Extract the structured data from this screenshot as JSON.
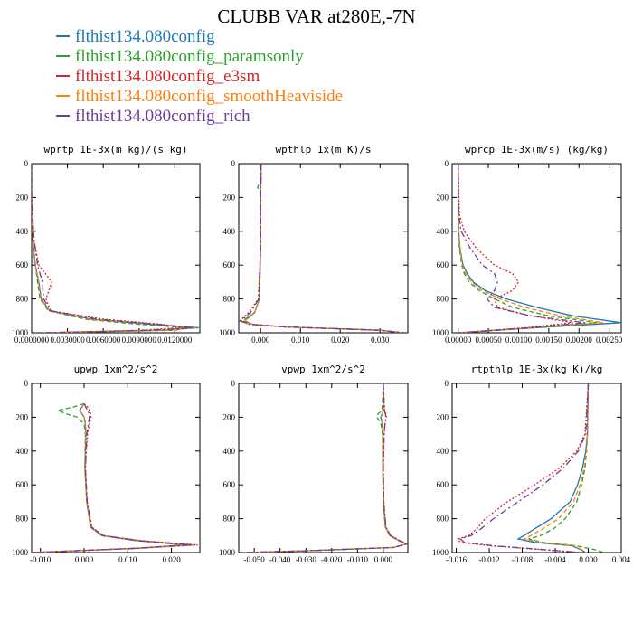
{
  "figure": {
    "title": "CLUBB VAR at280E,-7N"
  },
  "legend": [
    {
      "label": "flthist134.080config",
      "color": "#1f77b4",
      "dash": "solid"
    },
    {
      "label": "flthist134.080config_paramsonly",
      "color": "#2ca02c",
      "dash": "dashed"
    },
    {
      "label": "flthist134.080config_e3sm",
      "color": "#d62728",
      "dash": "dotted"
    },
    {
      "label": "flthist134.080config_smoothHeaviside",
      "color": "#ff7f0e",
      "dash": "dashed"
    },
    {
      "label": "flthist134.080config_rich",
      "color": "#6a3d9a",
      "dash": "dashdot"
    }
  ],
  "chart_data": [
    {
      "type": "line",
      "title": "wprtp  1E-3x(m kg)/(s kg)",
      "xlim": [
        0.0,
        0.0141
      ],
      "ylim": [
        1000,
        0
      ],
      "xticks": [
        0.0,
        0.003,
        0.006,
        0.009,
        0.012
      ],
      "xtick_labels": [
        "0.0000000",
        "0.0030000",
        "0.0060000",
        "0.0090000",
        "0.0120000"
      ],
      "yticks": [
        0,
        200,
        400,
        600,
        800,
        1000
      ],
      "y": [
        0,
        200,
        450,
        600,
        700,
        800,
        870,
        920,
        950,
        970,
        985,
        1000
      ],
      "series": [
        {
          "name": "flthist134.080config",
          "values": [
            0,
            0,
            0.0001,
            0.0003,
            0.0006,
            0.0008,
            0.0015,
            0.005,
            0.01,
            0.014,
            0.011,
            0.001
          ]
        },
        {
          "name": "flthist134.080config_paramsonly",
          "values": [
            0,
            0,
            0.0001,
            0.0003,
            0.0005,
            0.0007,
            0.0014,
            0.0045,
            0.009,
            0.013,
            0.012,
            0.001
          ]
        },
        {
          "name": "flthist134.080config_e3sm",
          "values": [
            0,
            0,
            0.0002,
            0.0006,
            0.0017,
            0.0012,
            0.0016,
            0.006,
            0.011,
            0.0125,
            0.009,
            0.001
          ]
        },
        {
          "name": "flthist134.080config_smoothHeaviside",
          "values": [
            0,
            0,
            0.0001,
            0.0003,
            0.0006,
            0.0008,
            0.0015,
            0.005,
            0.0105,
            0.0138,
            0.0115,
            0.001
          ]
        },
        {
          "name": "flthist134.080config_rich",
          "values": [
            0,
            0,
            0.0002,
            0.0005,
            0.0009,
            0.001,
            0.0016,
            0.0055,
            0.0105,
            0.0135,
            0.01,
            0.001
          ]
        }
      ]
    },
    {
      "type": "line",
      "title": "wpthlp  1x(m K)/s",
      "xlim": [
        -0.0055,
        0.037
      ],
      "ylim": [
        1000,
        0
      ],
      "xticks": [
        0.0,
        0.01,
        0.02,
        0.03
      ],
      "xtick_labels": [
        "0.000",
        "0.010",
        "0.020",
        "0.030"
      ],
      "yticks": [
        0,
        200,
        400,
        600,
        800,
        1000
      ],
      "y": [
        0,
        100,
        140,
        160,
        200,
        500,
        800,
        880,
        930,
        950,
        965,
        985,
        1000
      ],
      "series": [
        {
          "name": "flthist134.080config",
          "values": [
            0.0001,
            0.0001,
            0.0,
            0.0,
            0.0,
            0.0,
            -0.0003,
            -0.0015,
            -0.004,
            -0.002,
            0.006,
            0.03,
            0.036
          ]
        },
        {
          "name": "flthist134.080config_paramsonly",
          "values": [
            0.0001,
            0.0001,
            -0.0008,
            -0.0002,
            0.0,
            0.0,
            -0.0003,
            -0.0015,
            -0.0045,
            -0.002,
            0.006,
            0.03,
            0.036
          ]
        },
        {
          "name": "flthist134.080config_e3sm",
          "values": [
            0.0001,
            0.0001,
            0.0,
            0.0,
            0.0,
            0.0,
            -0.0006,
            -0.003,
            -0.0052,
            -0.003,
            0.006,
            0.03,
            0.036
          ]
        },
        {
          "name": "flthist134.080config_smoothHeaviside",
          "values": [
            0.0001,
            0.0001,
            0.0,
            0.0,
            0.0,
            0.0,
            -0.0003,
            -0.0015,
            -0.004,
            -0.002,
            0.006,
            0.03,
            0.036
          ]
        },
        {
          "name": "flthist134.080config_rich",
          "values": [
            0.0001,
            0.0001,
            0.0,
            0.0,
            0.0,
            0.0,
            -0.0005,
            -0.0025,
            -0.005,
            -0.0028,
            0.006,
            0.03,
            0.036
          ]
        }
      ]
    },
    {
      "type": "line",
      "title": "wprcp  1E-3x(m/s) (kg/kg)",
      "xlim": [
        -0.0001,
        0.0027
      ],
      "ylim": [
        1000,
        0
      ],
      "xticks": [
        0.0,
        0.0005,
        0.001,
        0.0015,
        0.002,
        0.0025
      ],
      "xtick_labels": [
        "0.00000",
        "0.00050",
        "0.00100",
        "0.00150",
        "0.00200",
        "0.00250"
      ],
      "yticks": [
        0,
        200,
        400,
        600,
        800,
        1000
      ],
      "y": [
        0,
        300,
        400,
        500,
        600,
        650,
        700,
        750,
        800,
        850,
        900,
        940,
        970,
        1000
      ],
      "series": [
        {
          "name": "flthist134.080config",
          "values": [
            0,
            0,
            1e-05,
            3e-05,
            8e-05,
            0.00015,
            0.00025,
            0.00045,
            0.0008,
            0.0013,
            0.0019,
            0.0027,
            0.0013,
            2e-05
          ]
        },
        {
          "name": "flthist134.080config_paramsonly",
          "values": [
            0,
            0,
            1e-05,
            2e-05,
            6e-05,
            0.0001,
            0.00018,
            0.00035,
            0.0006,
            0.0009,
            0.0015,
            0.0023,
            0.0012,
            2e-05
          ]
        },
        {
          "name": "flthist134.080config_e3sm",
          "values": [
            0,
            2e-05,
            0.0001,
            0.0003,
            0.0006,
            0.0009,
            0.001,
            0.0009,
            0.0006,
            0.00065,
            0.0012,
            0.0019,
            0.0011,
            2e-05
          ]
        },
        {
          "name": "flthist134.080config_smoothHeaviside",
          "values": [
            0,
            0,
            1e-05,
            3e-05,
            7e-05,
            0.00012,
            0.00022,
            0.0004,
            0.0007,
            0.0011,
            0.0017,
            0.0024,
            0.0012,
            2e-05
          ]
        },
        {
          "name": "flthist134.080config_rich",
          "values": [
            0,
            1e-05,
            5e-05,
            0.0002,
            0.0004,
            0.0006,
            0.00065,
            0.0006,
            0.00048,
            0.0006,
            0.0012,
            0.0021,
            0.0012,
            2e-05
          ]
        }
      ]
    },
    {
      "type": "line",
      "title": "upwp  1xm^2/s^2",
      "xlim": [
        -0.012,
        0.0265
      ],
      "ylim": [
        1000,
        0
      ],
      "xticks": [
        -0.01,
        0.0,
        0.01,
        0.02
      ],
      "xtick_labels": [
        "-0.010",
        "0.000",
        "0.010",
        "0.020"
      ],
      "yticks": [
        0,
        200,
        400,
        600,
        800,
        1000
      ],
      "y": [
        120,
        140,
        160,
        180,
        200,
        240,
        300,
        500,
        700,
        850,
        900,
        930,
        955,
        975,
        1000
      ],
      "series": [
        {
          "name": "flthist134.080config",
          "values": [
            0.0,
            -0.0005,
            -0.001,
            -0.0005,
            0.0,
            0.0003,
            0.0004,
            0.0002,
            0.0006,
            0.0015,
            0.004,
            0.012,
            0.023,
            0.012,
            -0.012
          ]
        },
        {
          "name": "flthist134.080config_paramsonly",
          "values": [
            0.0,
            -0.0025,
            -0.006,
            -0.004,
            -0.0015,
            0.0,
            0.0003,
            0.0002,
            0.0006,
            0.0015,
            0.0045,
            0.013,
            0.025,
            0.013,
            -0.012
          ]
        },
        {
          "name": "flthist134.080config_e3sm",
          "values": [
            0.0,
            0.0008,
            0.0012,
            0.0015,
            0.0016,
            0.0012,
            0.0008,
            0.0003,
            0.0007,
            0.0018,
            0.0045,
            0.013,
            0.026,
            0.012,
            -0.012
          ]
        },
        {
          "name": "flthist134.080config_smoothHeaviside",
          "values": [
            0.0,
            -0.0004,
            -0.0009,
            -0.0005,
            0.0,
            0.0003,
            0.0004,
            0.0002,
            0.0006,
            0.0015,
            0.004,
            0.012,
            0.024,
            0.012,
            -0.012
          ]
        },
        {
          "name": "flthist134.080config_rich",
          "values": [
            0.0,
            0.0004,
            0.0008,
            0.0012,
            0.0012,
            0.001,
            0.0006,
            0.0003,
            0.0007,
            0.0017,
            0.0043,
            0.0125,
            0.0245,
            0.012,
            -0.012
          ]
        }
      ]
    },
    {
      "type": "line",
      "title": "vpwp  1xm^2/s^2",
      "xlim": [
        -0.056,
        0.0095
      ],
      "ylim": [
        1000,
        0
      ],
      "xticks": [
        -0.05,
        -0.04,
        -0.03,
        -0.02,
        -0.01,
        0.0
      ],
      "xtick_labels": [
        "-0.050",
        "-0.040",
        "-0.030",
        "-0.020",
        "-0.010",
        "0.000"
      ],
      "yticks": [
        0,
        200,
        400,
        600,
        800,
        1000
      ],
      "y": [
        0,
        160,
        180,
        200,
        230,
        300,
        500,
        700,
        850,
        900,
        930,
        950,
        970,
        990,
        1000
      ],
      "series": [
        {
          "name": "flthist134.080config",
          "values": [
            0.0,
            0.0,
            -0.0005,
            -0.001,
            -0.0005,
            -0.0002,
            -0.0002,
            0.0,
            0.0008,
            0.0025,
            0.006,
            0.009,
            0.004,
            -0.03,
            -0.054
          ]
        },
        {
          "name": "flthist134.080config_paramsonly",
          "values": [
            0.0,
            -0.0005,
            -0.002,
            -0.0025,
            -0.001,
            -0.0003,
            -0.0002,
            0.0,
            0.0008,
            0.0025,
            0.006,
            0.009,
            0.004,
            -0.03,
            -0.054
          ]
        },
        {
          "name": "flthist134.080config_e3sm",
          "values": [
            0.0,
            0.0005,
            0.001,
            0.0012,
            0.0008,
            0.0003,
            0.0,
            0.0002,
            0.001,
            0.003,
            0.0065,
            0.0092,
            0.004,
            -0.03,
            -0.054
          ]
        },
        {
          "name": "flthist134.080config_smoothHeaviside",
          "values": [
            0.0,
            0.0,
            -0.0004,
            -0.0008,
            -0.0004,
            -0.0002,
            -0.0002,
            0.0,
            0.0008,
            0.0025,
            0.006,
            0.009,
            0.004,
            -0.03,
            -0.054
          ]
        },
        {
          "name": "flthist134.080config_rich",
          "values": [
            0.0,
            0.0004,
            0.0008,
            0.001,
            0.0007,
            0.0003,
            0.0,
            0.0002,
            0.001,
            0.0028,
            0.0062,
            0.009,
            0.004,
            -0.03,
            -0.054
          ]
        }
      ]
    },
    {
      "type": "line",
      "title": "rtpthlp  1E-3x(kg K)/kg",
      "xlim": [
        -0.0165,
        0.004
      ],
      "ylim": [
        1000,
        0
      ],
      "xticks": [
        -0.016,
        -0.012,
        -0.008,
        -0.004,
        0.0,
        0.004
      ],
      "xtick_labels": [
        "-0.016",
        "-0.012",
        "-0.008",
        "-0.004",
        "0.000",
        "0.004"
      ],
      "yticks": [
        0,
        200,
        400,
        600,
        800,
        1000
      ],
      "y": [
        0,
        300,
        400,
        500,
        600,
        700,
        800,
        860,
        900,
        920,
        940,
        960,
        985,
        1000
      ],
      "series": [
        {
          "name": "flthist134.080config",
          "values": [
            0.0,
            -0.0001,
            -0.0003,
            -0.0007,
            -0.0013,
            -0.0022,
            -0.0045,
            -0.0065,
            -0.0078,
            -0.0085,
            -0.0065,
            -0.002,
            -0.0008,
            -0.0003
          ]
        },
        {
          "name": "flthist134.080config_paramsonly",
          "values": [
            0.0,
            -0.0001,
            -0.0002,
            -0.0004,
            -0.0008,
            -0.0014,
            -0.0028,
            -0.0042,
            -0.0058,
            -0.0072,
            -0.0055,
            -0.0015,
            0.001,
            0.0019
          ]
        },
        {
          "name": "flthist134.080config_e3sm",
          "values": [
            0.0,
            -0.0004,
            -0.0014,
            -0.0035,
            -0.0065,
            -0.0098,
            -0.0125,
            -0.0135,
            -0.0145,
            -0.0158,
            -0.0155,
            -0.012,
            -0.005,
            -0.0008
          ]
        },
        {
          "name": "flthist134.080config_smoothHeaviside",
          "values": [
            0.0,
            -0.0001,
            -0.0002,
            -0.0005,
            -0.001,
            -0.0018,
            -0.0036,
            -0.0055,
            -0.007,
            -0.0078,
            -0.0058,
            -0.0018,
            -0.0007,
            -0.0003
          ]
        },
        {
          "name": "flthist134.080config_rich",
          "values": [
            0.0,
            -0.0003,
            -0.0012,
            -0.003,
            -0.0055,
            -0.0085,
            -0.0115,
            -0.013,
            -0.0142,
            -0.0155,
            -0.015,
            -0.0115,
            -0.0048,
            -0.0008
          ]
        }
      ]
    }
  ]
}
